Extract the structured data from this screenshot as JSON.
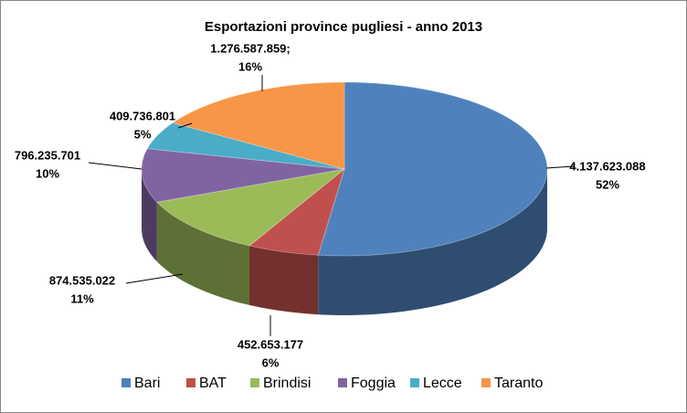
{
  "chart_data": {
    "type": "pie3d",
    "title": "Esportazioni province pugliesi - anno 2013",
    "categories": [
      "Bari",
      "BAT",
      "Brindisi",
      "Foggia",
      "Lecce",
      "Taranto"
    ],
    "values": [
      4137623088,
      452653177,
      874535022,
      796235701,
      409736801,
      1276587859
    ],
    "value_labels": [
      "4.137.623.088",
      "452.653.177",
      "874.535.022",
      "796.235.701",
      "409.736.801",
      "1.276.587.859;"
    ],
    "percent_labels": [
      "52%",
      "6%",
      "11%",
      "10%",
      "5%",
      "16%"
    ],
    "colors": [
      "#4f81bd",
      "#c0504d",
      "#9bbb59",
      "#8064a2",
      "#4bacc6",
      "#f79646"
    ],
    "legend": "bottom"
  }
}
